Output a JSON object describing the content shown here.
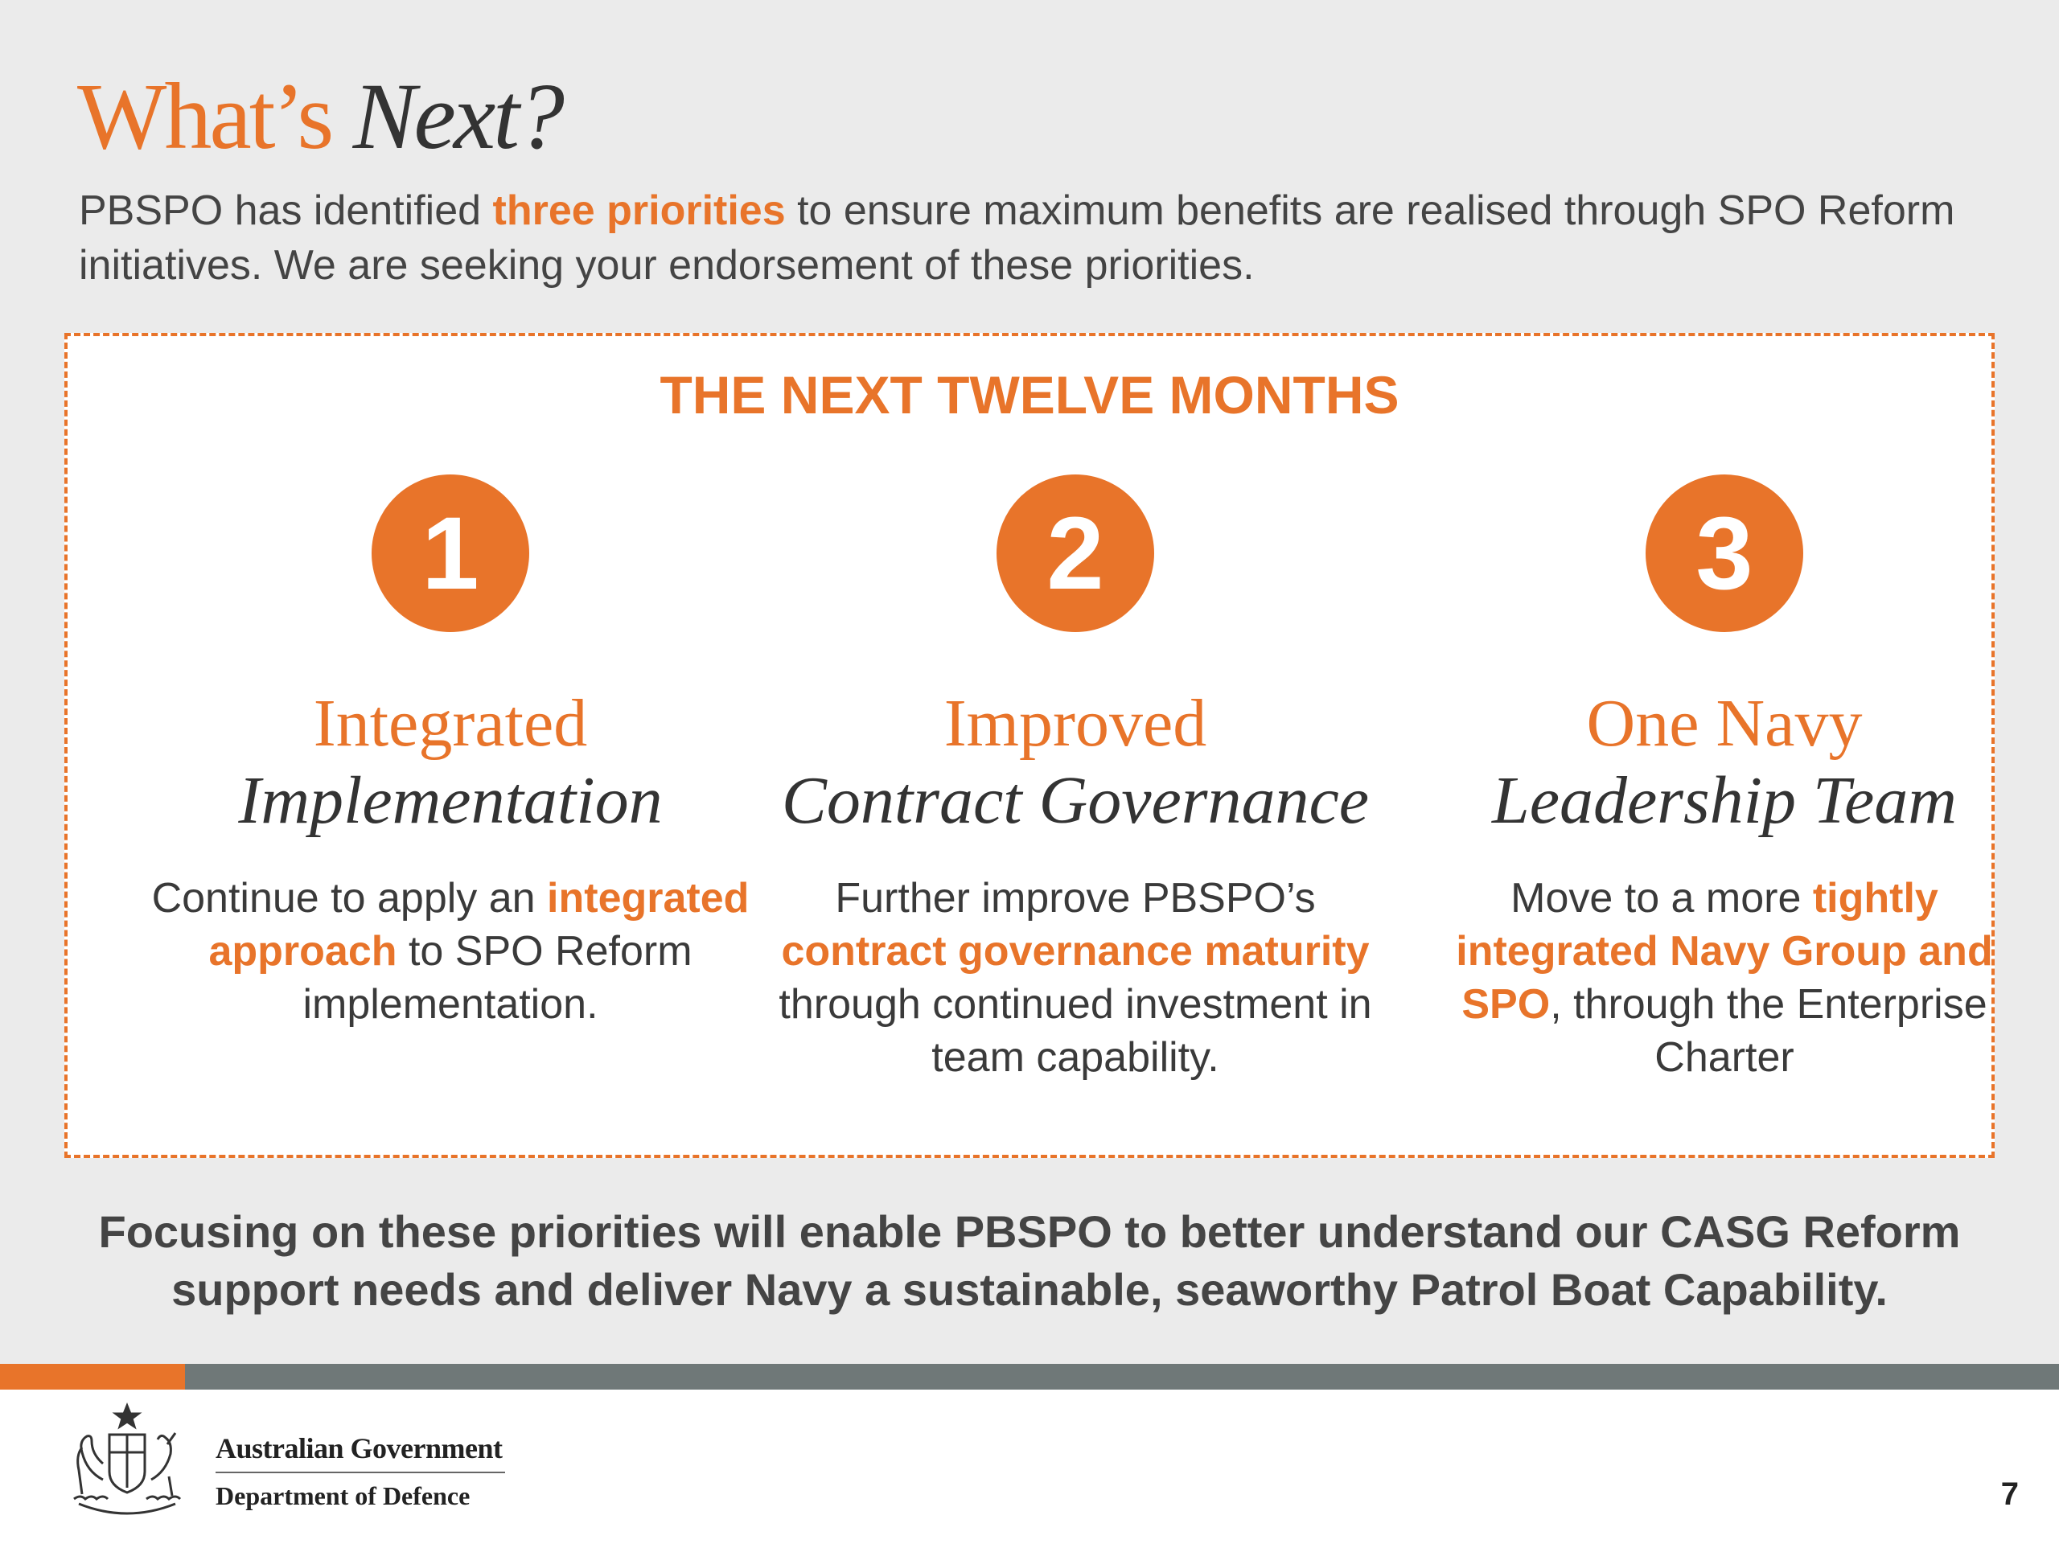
{
  "header": {
    "title_part1": "What’s",
    "title_part2": "Next?",
    "intro_pre": "PBSPO has identified ",
    "intro_highlight": "three priorities",
    "intro_post": " to ensure maximum benefits are realised through SPO Reform initiatives. We are seeking your endorsement of these priorities."
  },
  "panel": {
    "title": "THE NEXT TWELVE MONTHS",
    "priorities": [
      {
        "number": "1",
        "heading1": "Integrated",
        "heading2": "Implementation",
        "text_pre": "Continue to apply an ",
        "text_highlight": "integrated approach",
        "text_post": " to SPO Reform implementation."
      },
      {
        "number": "2",
        "heading1": "Improved",
        "heading2": "Contract Governance",
        "text_pre": "Further improve PBSPO’s ",
        "text_highlight": "contract governance maturity",
        "text_post": " through continued investment in team capability."
      },
      {
        "number": "3",
        "heading1": "One Navy",
        "heading2": "Leadership Team",
        "text_pre": "Move to a more ",
        "text_highlight": "tightly integrated Navy Group and SPO",
        "text_post": ", through the Enterprise Charter"
      }
    ]
  },
  "conclusion": "Focusing on these priorities will enable PBSPO to better understand our CASG Reform support needs and deliver Navy a sustainable, seaworthy Patrol Boat Capability.",
  "footer": {
    "gov_line1": "Australian Government",
    "gov_line2": "Department of Defence",
    "page_number": "7",
    "crest_icon": "coat-of-arms-icon"
  },
  "colors": {
    "accent": "#e8742a",
    "background": "#ebebeb",
    "bar_gray": "#6f7878"
  }
}
